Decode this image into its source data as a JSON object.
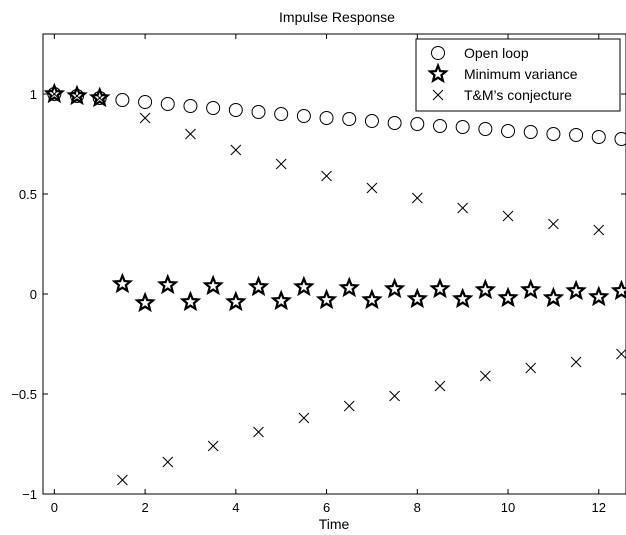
{
  "chart_data": {
    "type": "scatter",
    "title": "Impulse Response",
    "xlabel": "Time",
    "ylabel": "",
    "xlim": [
      -0.25,
      12.6
    ],
    "ylim": [
      -1,
      1.3
    ],
    "xticks": [
      0,
      2,
      4,
      6,
      8,
      10,
      12
    ],
    "yticks": [
      -1,
      -0.5,
      0,
      0.5,
      1
    ],
    "ytick_labels": [
      "−1",
      "−0.5",
      "0",
      "0.5",
      "1"
    ],
    "grid": false,
    "legend_position": "top-right",
    "series": [
      {
        "name": "Open loop",
        "marker": "circle",
        "x": [
          0,
          0.5,
          1,
          1.5,
          2,
          2.5,
          3,
          3.5,
          4,
          4.5,
          5,
          5.5,
          6,
          6.5,
          7,
          7.5,
          8,
          8.5,
          9,
          9.5,
          10,
          10.5,
          11,
          11.5,
          12,
          12.5
        ],
        "y": [
          1.0,
          0.99,
          0.98,
          0.97,
          0.96,
          0.95,
          0.94,
          0.93,
          0.92,
          0.91,
          0.9,
          0.89,
          0.88,
          0.875,
          0.865,
          0.855,
          0.85,
          0.84,
          0.835,
          0.825,
          0.815,
          0.81,
          0.8,
          0.795,
          0.785,
          0.775
        ]
      },
      {
        "name": "Minimum variance",
        "marker": "star",
        "x": [
          0,
          0.5,
          1,
          1.5,
          2,
          2.5,
          3,
          3.5,
          4,
          4.5,
          5,
          5.5,
          6,
          6.5,
          7,
          7.5,
          8,
          8.5,
          9,
          9.5,
          10,
          10.5,
          11,
          11.5,
          12,
          12.5
        ],
        "y": [
          1.0,
          0.99,
          0.98,
          0.05,
          -0.045,
          0.045,
          -0.04,
          0.04,
          -0.04,
          0.035,
          -0.035,
          0.035,
          -0.03,
          0.03,
          -0.03,
          0.025,
          -0.025,
          0.025,
          -0.025,
          0.02,
          -0.02,
          0.02,
          -0.02,
          0.015,
          -0.015,
          0.015
        ]
      },
      {
        "name": "T&M’s conjecture",
        "marker": "x",
        "x": [
          0,
          0.5,
          1,
          1.5,
          2,
          2.5,
          3,
          3.5,
          4,
          4.5,
          5,
          5.5,
          6,
          6.5,
          7,
          7.5,
          8,
          8.5,
          9,
          9.5,
          10,
          10.5,
          11,
          11.5,
          12,
          12.5
        ],
        "y": [
          1.0,
          0.99,
          0.98,
          -0.93,
          0.88,
          -0.84,
          0.8,
          -0.76,
          0.72,
          -0.69,
          0.65,
          -0.62,
          0.59,
          -0.56,
          0.53,
          -0.51,
          0.48,
          -0.46,
          0.43,
          -0.41,
          0.39,
          -0.37,
          0.35,
          -0.34,
          0.32,
          -0.3
        ]
      }
    ]
  }
}
